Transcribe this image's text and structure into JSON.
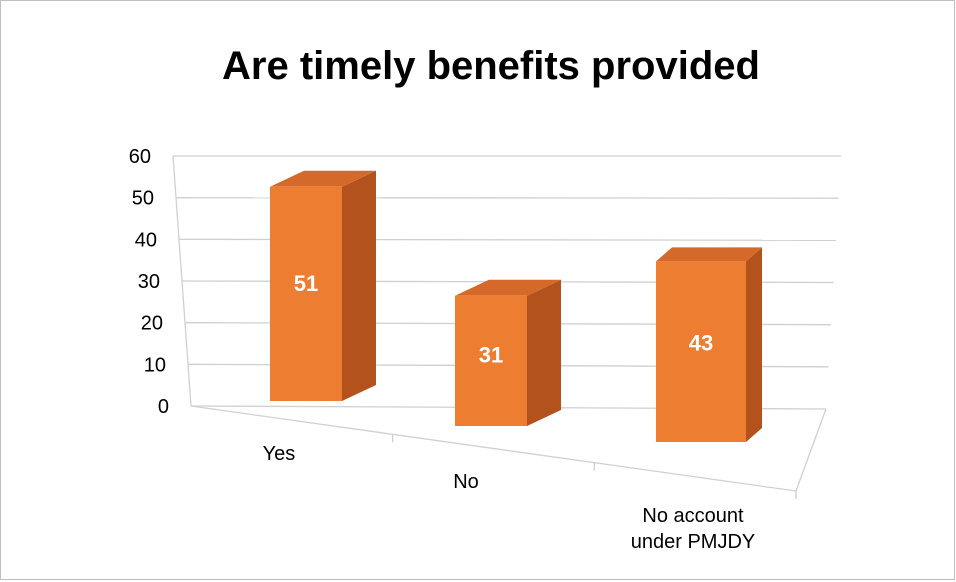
{
  "chart_data": {
    "type": "bar",
    "title": "Are timely benefits provided",
    "categories": [
      "Yes",
      "No",
      "No account under PMJDY"
    ],
    "category_lines": [
      [
        "Yes"
      ],
      [
        "No"
      ],
      [
        "No account",
        "under PMJDY"
      ]
    ],
    "values": [
      51,
      31,
      43
    ],
    "data_labels": [
      "51",
      "31",
      "43"
    ],
    "yticks": [
      "0",
      "10",
      "20",
      "30",
      "40",
      "50",
      "60"
    ],
    "ylim": [
      0,
      60
    ],
    "grid": true,
    "legend": "none",
    "style": "3d-column",
    "colors": {
      "bar_front": "#ed7d31",
      "bar_side": "#b4521e",
      "bar_top": "#d4692a",
      "label": "#ffffff"
    }
  }
}
